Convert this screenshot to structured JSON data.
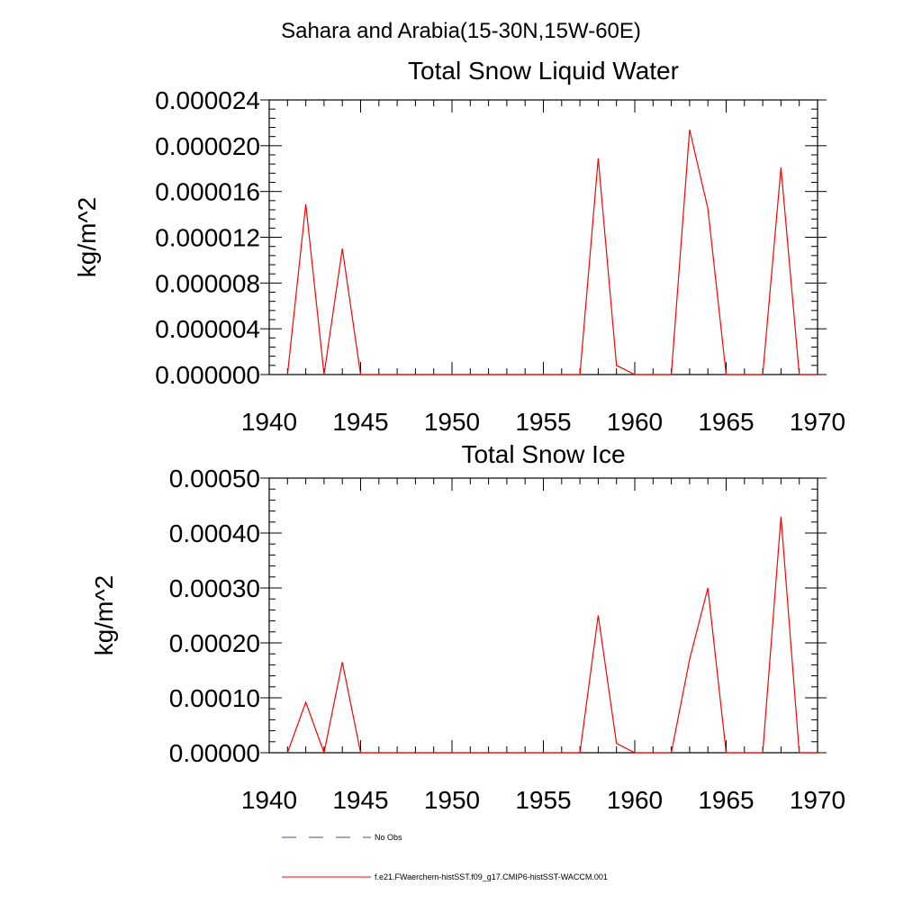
{
  "page_title": "Sahara and Arabia(15-30N,15W-60E)",
  "chart_data": [
    {
      "type": "line",
      "title": "Total Snow Liquid Water",
      "xlabel": "",
      "ylabel": "kg/m^2",
      "xlim": [
        1940,
        1970
      ],
      "ylim": [
        0,
        2.4e-05
      ],
      "x_ticks": [
        "1940",
        "1945",
        "1950",
        "1955",
        "1960",
        "1965",
        "1970"
      ],
      "y_ticks": [
        "0.000000",
        "0.000004",
        "0.000008",
        "0.000012",
        "0.000016",
        "0.000020",
        "0.000024"
      ],
      "grid": false,
      "series": [
        {
          "name": "f.e21.FWaerchem-histSST.f09_g17.CMIP6-histSST-WACCM.001",
          "color": "#ff0000",
          "x": [
            1941,
            1942,
            1943,
            1944,
            1945,
            1946,
            1947,
            1948,
            1949,
            1950,
            1951,
            1952,
            1953,
            1954,
            1955,
            1956,
            1957,
            1958,
            1959,
            1960,
            1961,
            1962,
            1963,
            1964,
            1965,
            1966,
            1967,
            1968,
            1969,
            1970
          ],
          "values": [
            0,
            1.49e-05,
            0,
            1.1e-05,
            0,
            0,
            0,
            0,
            0,
            0,
            0,
            0,
            0,
            0,
            0,
            0,
            0,
            1.89e-05,
            8e-07,
            0,
            0,
            0,
            2.14e-05,
            1.45e-05,
            0,
            0,
            0,
            1.81e-05,
            0,
            0
          ]
        }
      ]
    },
    {
      "type": "line",
      "title": "Total Snow Ice",
      "xlabel": "",
      "ylabel": "kg/m^2",
      "xlim": [
        1940,
        1970
      ],
      "ylim": [
        0,
        0.0005
      ],
      "x_ticks": [
        "1940",
        "1945",
        "1950",
        "1955",
        "1960",
        "1965",
        "1970"
      ],
      "y_ticks": [
        "0.00000",
        "0.00010",
        "0.00020",
        "0.00030",
        "0.00040",
        "0.00050"
      ],
      "grid": false,
      "series": [
        {
          "name": "f.e21.FWaerchem-histSST.f09_g17.CMIP6-histSST-WACCM.001",
          "color": "#ff0000",
          "x": [
            1941,
            1942,
            1943,
            1944,
            1945,
            1946,
            1947,
            1948,
            1949,
            1950,
            1951,
            1952,
            1953,
            1954,
            1955,
            1956,
            1957,
            1958,
            1959,
            1960,
            1961,
            1962,
            1963,
            1964,
            1965,
            1966,
            1967,
            1968,
            1969,
            1970
          ],
          "values": [
            0,
            9.2e-05,
            0,
            0.000165,
            0,
            0,
            0,
            0,
            0,
            0,
            0,
            0,
            0,
            0,
            0,
            0,
            0,
            0.00025,
            1.7e-05,
            0,
            0,
            0,
            0.00017,
            0.0003,
            0,
            0,
            0,
            0.00043,
            0,
            0
          ]
        }
      ]
    }
  ],
  "legend": [
    {
      "label": "No Obs",
      "color": "#4a4a8a",
      "style": "dashed"
    },
    {
      "label": "f.e21.FWaerchem-histSST.f09_g17.CMIP6-histSST-WACCM.001",
      "color": "#ff0000",
      "style": "solid"
    }
  ]
}
